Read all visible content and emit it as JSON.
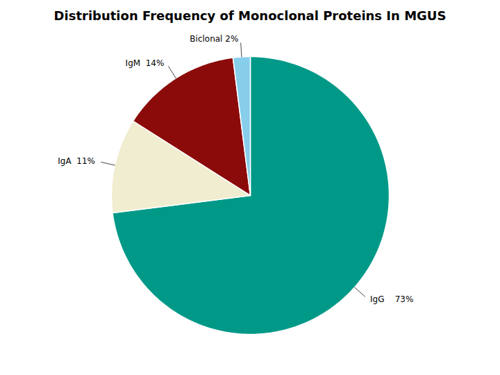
{
  "chart_data": {
    "type": "pie",
    "title": "Distribution Frequency of Monoclonal Proteins In MGUS",
    "categories": [
      "IgG",
      "IgA",
      "IgM",
      "Biclonal"
    ],
    "values": [
      73,
      11,
      14,
      2
    ],
    "value_labels": [
      "IgG    73%",
      "IgA  11%",
      "IgM  14%",
      "Biclonal 2%"
    ],
    "colors": [
      "#009988",
      "#F0EDD0",
      "#8B0A0A",
      "#87CEEB"
    ],
    "data_labels": true
  }
}
